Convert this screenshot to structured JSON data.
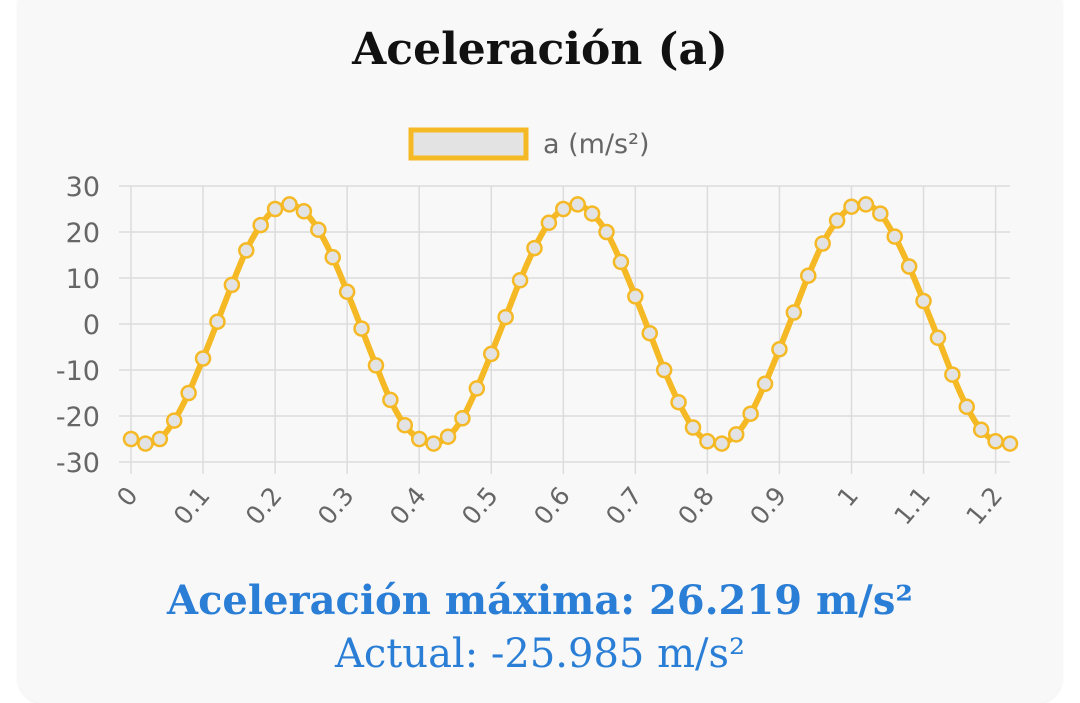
{
  "title": "Aceleración (a)",
  "stats": {
    "max_label": "Aceleración máxima: 26.219 m/s²",
    "current_label": "Actual: -25.985 m/s²"
  },
  "colors": {
    "line": "#f5b925",
    "point_fill": "#e3e3e3",
    "grid": "#dcdcdc",
    "tick_text": "#666666",
    "stat_text": "#2a7ed6"
  },
  "chart_data": {
    "type": "line",
    "title": "",
    "xlabel": "",
    "ylabel": "",
    "legend": {
      "position": "top-center"
    },
    "grid": true,
    "ylim": [
      -30,
      30
    ],
    "yticks": [
      30,
      20,
      10,
      0,
      -10,
      -20,
      -30
    ],
    "xlim": [
      0,
      1.22
    ],
    "xticks": [
      "0",
      "0.1",
      "0.2",
      "0.3",
      "0.4",
      "0.5",
      "0.6",
      "0.7",
      "0.8",
      "0.9",
      "1",
      "1.1",
      "1.2"
    ],
    "series": [
      {
        "name": "a (m/s²)",
        "x": [
          0,
          0.02,
          0.04,
          0.06,
          0.08,
          0.1,
          0.12,
          0.14,
          0.16,
          0.18,
          0.2,
          0.22,
          0.24,
          0.26,
          0.28,
          0.3,
          0.32,
          0.34,
          0.36,
          0.38,
          0.4,
          0.42,
          0.44,
          0.46,
          0.48,
          0.5,
          0.52,
          0.54,
          0.56,
          0.58,
          0.6,
          0.62,
          0.64,
          0.66,
          0.68,
          0.7,
          0.72,
          0.74,
          0.76,
          0.78,
          0.8,
          0.82,
          0.84,
          0.86,
          0.88,
          0.9,
          0.92,
          0.94,
          0.96,
          0.98,
          1,
          1.02,
          1.04,
          1.06,
          1.08,
          1.1,
          1.12,
          1.14,
          1.16,
          1.18,
          1.2,
          1.22
        ],
        "values": [
          -25,
          -26,
          -25,
          -21,
          -15,
          -7.5,
          0.5,
          8.5,
          16,
          21.5,
          25,
          26,
          24.5,
          20.5,
          14.5,
          7,
          -1,
          -9,
          -16.5,
          -22,
          -25,
          -26,
          -24.5,
          -20.5,
          -14,
          -6.5,
          1.5,
          9.5,
          16.5,
          22,
          25,
          26,
          24,
          20,
          13.5,
          6,
          -2,
          -10,
          -17,
          -22.5,
          -25.5,
          -26,
          -24,
          -19.5,
          -13,
          -5.5,
          2.5,
          10.5,
          17.5,
          22.5,
          25.5,
          26,
          24,
          19,
          12.5,
          5,
          -3,
          -11,
          -18,
          -23,
          -25.5,
          -26
        ]
      }
    ]
  }
}
